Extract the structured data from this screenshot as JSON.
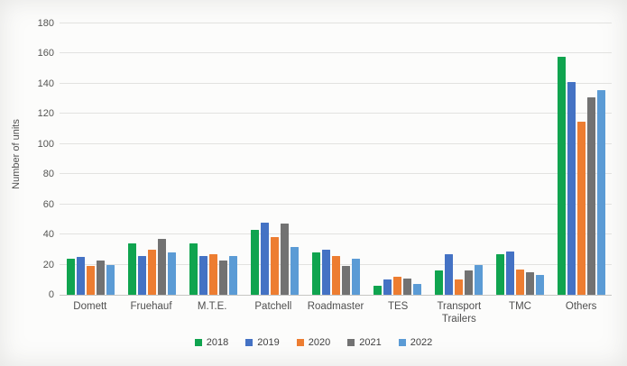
{
  "chart_data": {
    "type": "bar",
    "title": "",
    "ylabel": "Number of units",
    "xlabel": "",
    "ylim": [
      0,
      180
    ],
    "ytick_step": 20,
    "grid": true,
    "legend_position": "bottom",
    "categories": [
      "Domett",
      "Fruehauf",
      "M.T.E.",
      "Patchell",
      "Roadmaster",
      "TES",
      "Transport Trailers",
      "TMC",
      "Others"
    ],
    "series": [
      {
        "name": "2018",
        "color": "#10A44F",
        "values": [
          24,
          34,
          34,
          43,
          28,
          6,
          16,
          27,
          158
        ]
      },
      {
        "name": "2019",
        "color": "#4472C4",
        "values": [
          25,
          26,
          26,
          48,
          30,
          10,
          27,
          29,
          141
        ]
      },
      {
        "name": "2020",
        "color": "#ED7D31",
        "values": [
          19,
          30,
          27,
          38,
          26,
          12,
          10,
          17,
          115
        ]
      },
      {
        "name": "2021",
        "color": "#727272",
        "values": [
          23,
          37,
          23,
          47,
          19,
          11,
          16,
          15,
          131
        ]
      },
      {
        "name": "2022",
        "color": "#5B9BD5",
        "values": [
          20,
          28,
          26,
          32,
          24,
          7,
          20,
          13,
          136
        ]
      }
    ]
  }
}
